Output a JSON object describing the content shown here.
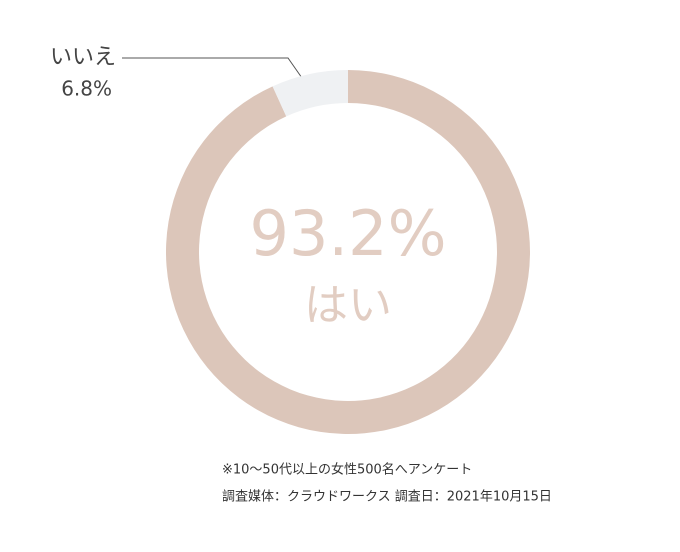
{
  "chart_data": {
    "type": "pie",
    "donut": true,
    "categories": [
      "はい",
      "いいえ"
    ],
    "values": [
      93.2,
      6.8
    ],
    "value_labels": [
      "93.2%",
      "6.8%"
    ],
    "colors": [
      "#dcc6ba",
      "#eff1f3"
    ],
    "notes": [
      "※10〜50代以上の女性500名へアンケート",
      "調査媒体：クラウドワークス 調査日：2021年10月15日"
    ]
  }
}
